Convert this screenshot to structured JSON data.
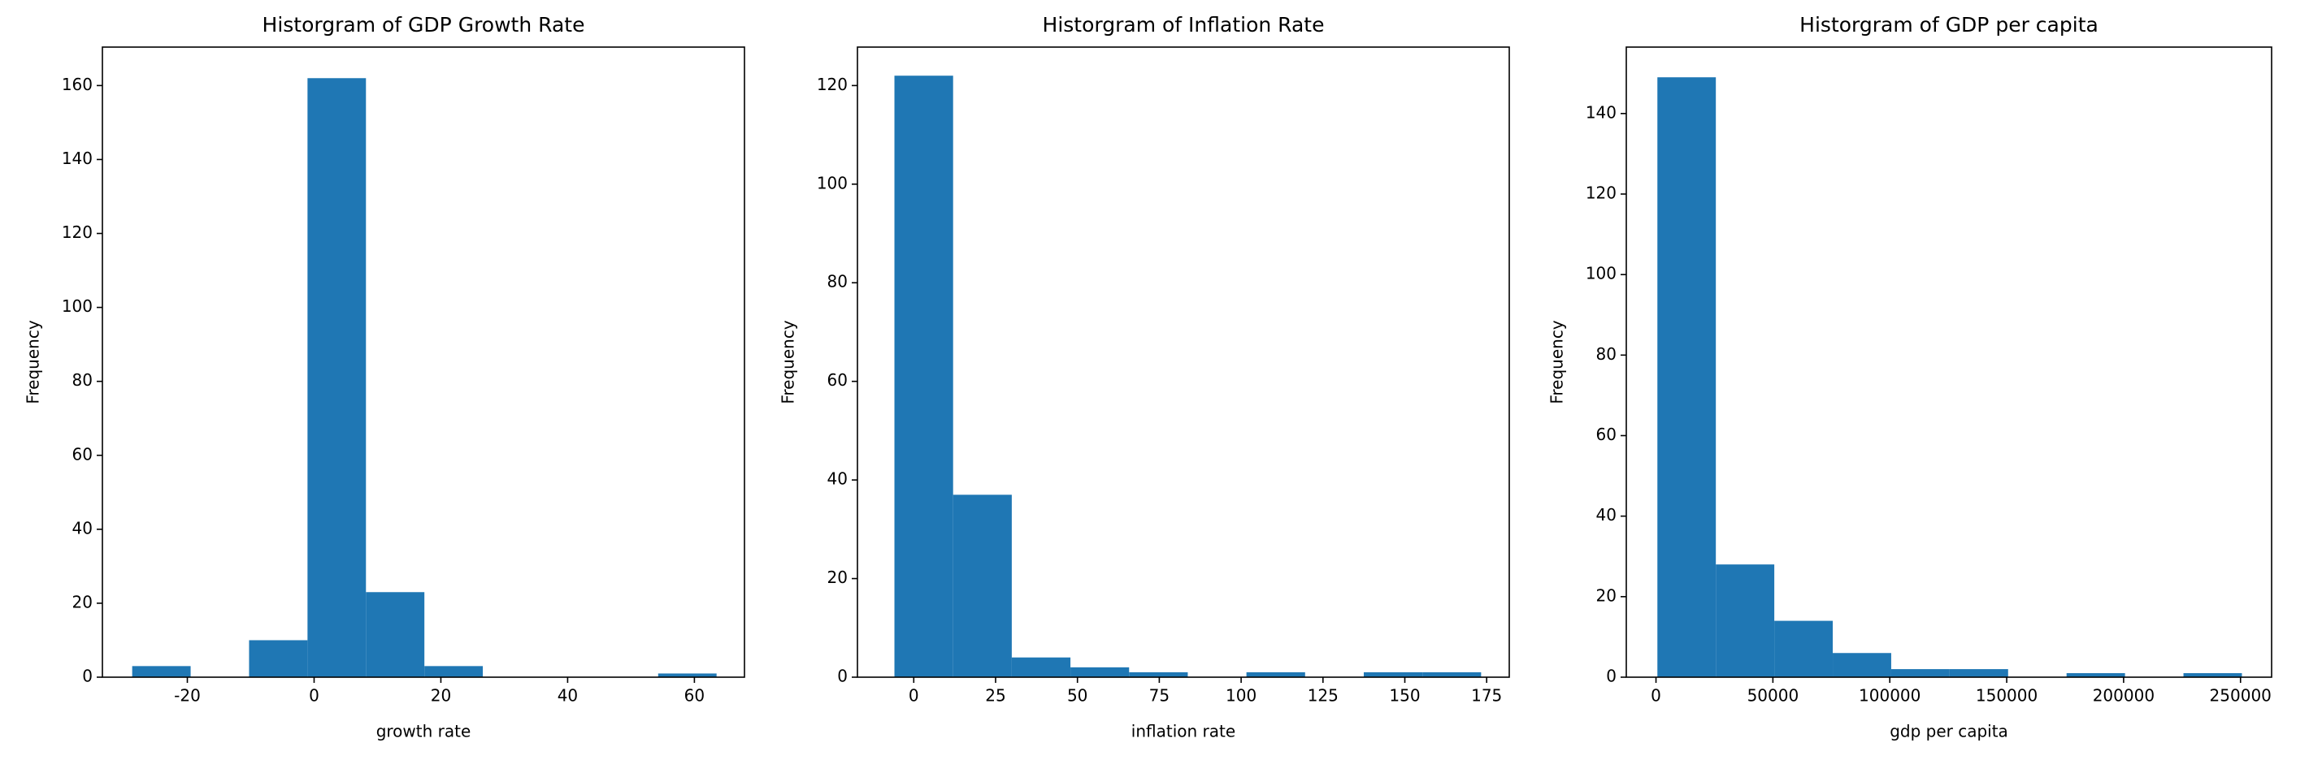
{
  "chart_data": [
    {
      "type": "histogram",
      "title": "Historgram of GDP Growth Rate",
      "xlabel": "growth rate",
      "ylabel": "Frequency",
      "bins": [
        -28.7,
        -19.48,
        -10.26,
        -1.04,
        8.18,
        17.4,
        26.62,
        35.84,
        45.06,
        54.28,
        63.5
      ],
      "values": [
        3,
        0,
        10,
        162,
        23,
        3,
        0,
        0,
        0,
        1
      ],
      "color": "#1f77b4",
      "xlim": [
        -33.4,
        67.9
      ],
      "xticks": [
        -20,
        0,
        20,
        40,
        60
      ],
      "ylim": [
        0,
        170.4
      ],
      "yticks": [
        0,
        20,
        40,
        60,
        80,
        100,
        120,
        140,
        160
      ]
    },
    {
      "type": "histogram",
      "title": "Historgram of Inflation Rate",
      "xlabel": "inflation rate",
      "ylabel": "Frequency",
      "bins": [
        -5.9,
        12.02,
        29.94,
        47.86,
        65.78,
        83.7,
        101.62,
        119.54,
        137.46,
        155.38,
        173.3
      ],
      "values": [
        122,
        37,
        4,
        2,
        1,
        0,
        1,
        0,
        1,
        1
      ],
      "color": "#1f77b4",
      "xlim": [
        -17.2,
        181.9
      ],
      "xticks": [
        0,
        25,
        50,
        75,
        100,
        125,
        150,
        175
      ],
      "ylim": [
        0,
        127.8
      ],
      "yticks": [
        0,
        20,
        40,
        60,
        80,
        100,
        120
      ]
    },
    {
      "type": "histogram",
      "title": "Historgram of GDP per capita",
      "xlabel": "gdp per capita",
      "ylabel": "Frequency",
      "bins": [
        600,
        25600,
        50600,
        75600,
        100600,
        125600,
        150600,
        175600,
        200600,
        225600,
        250600
      ],
      "values": [
        149,
        28,
        14,
        6,
        2,
        2,
        0,
        1,
        0,
        1
      ],
      "color": "#1f77b4",
      "xlim": [
        -12700,
        263300
      ],
      "xticks": [
        0,
        50000,
        100000,
        150000,
        200000,
        250000
      ],
      "ylim": [
        0,
        156.5
      ],
      "yticks": [
        0,
        20,
        40,
        60,
        80,
        100,
        120,
        140
      ]
    }
  ]
}
